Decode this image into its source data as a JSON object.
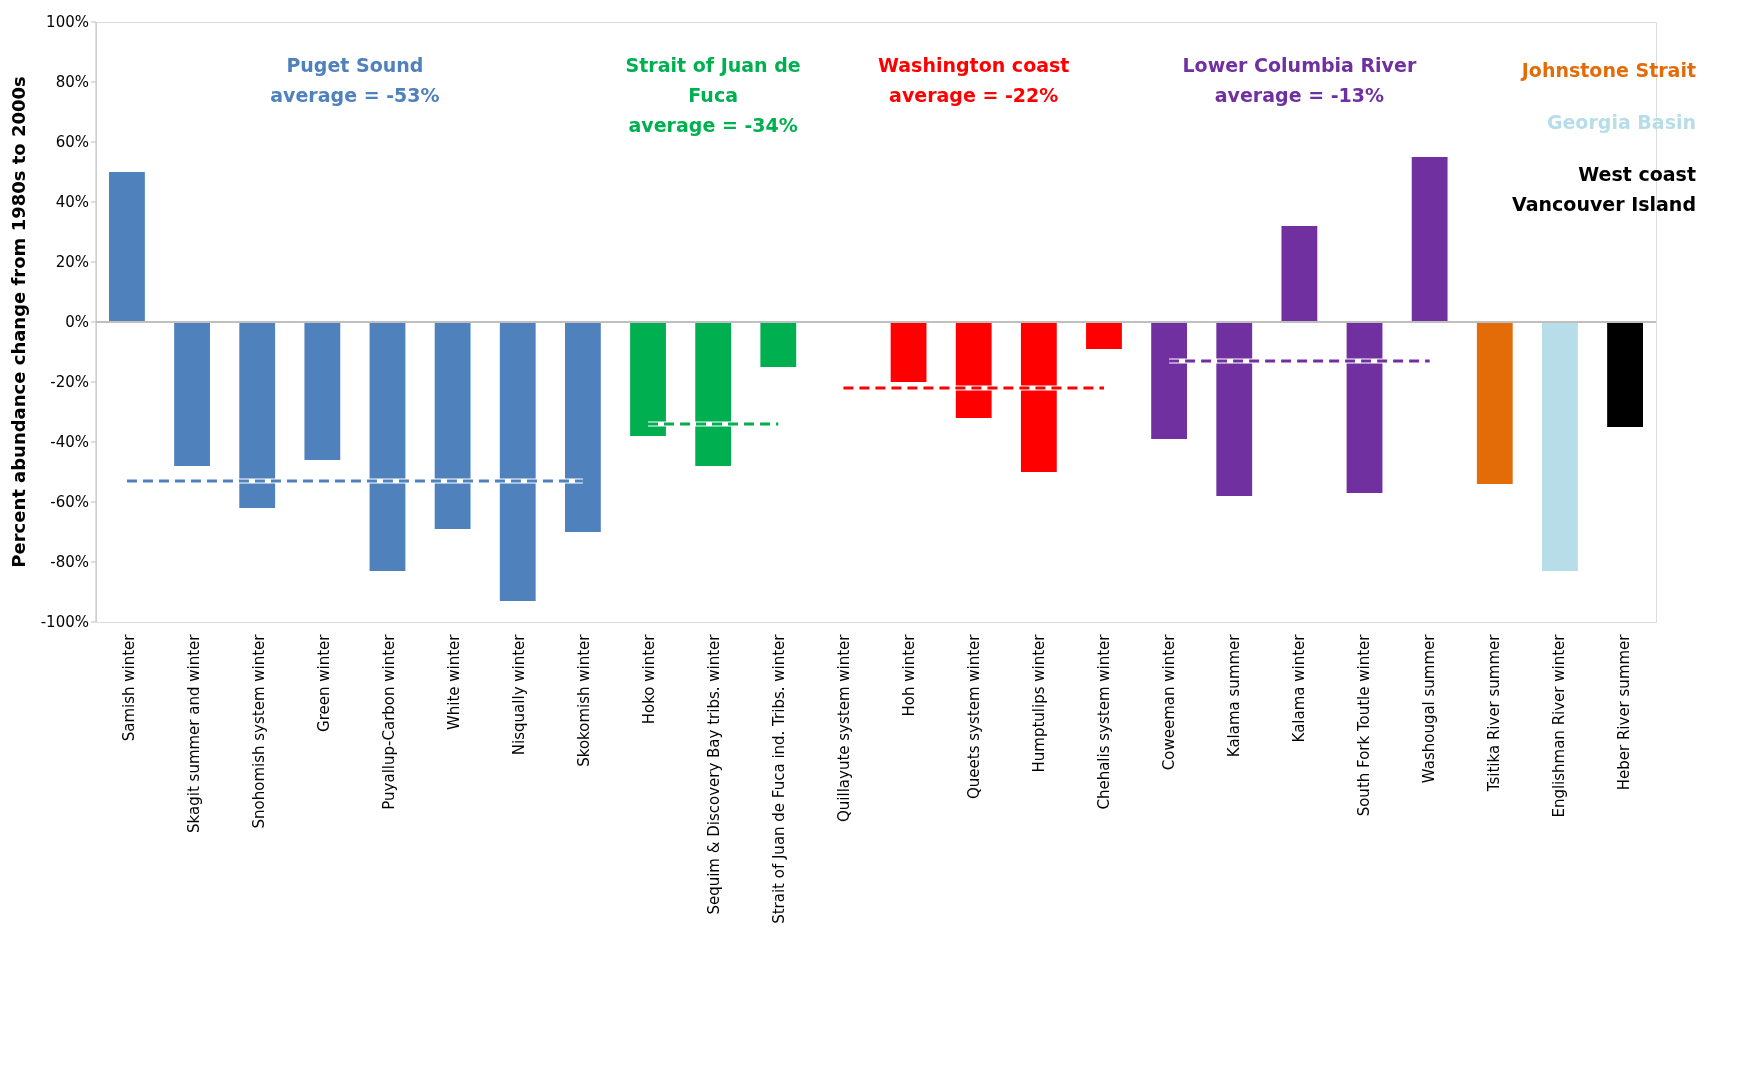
{
  "chart_data": {
    "type": "bar",
    "ylabel": "Percent abundance change from 1980s to 2000s",
    "categories": [
      "Samish winter",
      "Skagit summer and winter",
      "Snohomish system winter",
      "Green winter",
      "Puyallup-Carbon winter",
      "White winter",
      "Nisqually winter",
      "Skokomish winter",
      "Hoko winter",
      "Sequim & Discovery Bay tribs. winter",
      "Strait of Juan de Fuca ind. Tribs. winter",
      "Quillayute system winter",
      "Hoh winter",
      "Queets system winter",
      "Humptulips winter",
      "Chehalis system winter",
      "Coweeman winter",
      "Kalama summer",
      "Kalama winter",
      "South Fork Toutle winter",
      "Washougal summer",
      "Tsitika River summer",
      "Englishman River winter",
      "Heber River summer"
    ],
    "series": [
      {
        "name": "Puget Sound",
        "color": "#4f81bd",
        "values": [
          50,
          -48,
          -62,
          -46,
          -83,
          -69,
          -93,
          -70,
          null,
          null,
          null,
          null,
          null,
          null,
          null,
          null,
          null,
          null,
          null,
          null,
          null,
          null,
          null,
          null
        ]
      },
      {
        "name": "Strait of Juan de Fuca",
        "color": "#00b050",
        "values": [
          null,
          null,
          null,
          null,
          null,
          null,
          null,
          null,
          -38,
          -48,
          -15,
          null,
          null,
          null,
          null,
          null,
          null,
          null,
          null,
          null,
          null,
          null,
          null,
          null
        ]
      },
      {
        "name": "Washington coast",
        "color": "#ff0000",
        "values": [
          null,
          null,
          null,
          null,
          null,
          null,
          null,
          null,
          null,
          null,
          null,
          0,
          -20,
          -32,
          -50,
          -9,
          null,
          null,
          null,
          null,
          null,
          null,
          null,
          null
        ]
      },
      {
        "name": "Lower Columbia River",
        "color": "#7030a0",
        "values": [
          null,
          null,
          null,
          null,
          null,
          null,
          null,
          null,
          null,
          null,
          null,
          null,
          null,
          null,
          null,
          null,
          -39,
          -58,
          32,
          -57,
          55,
          null,
          null,
          null
        ]
      },
      {
        "name": "Johnstone Strait",
        "color": "#e36c09",
        "values": [
          null,
          null,
          null,
          null,
          null,
          null,
          null,
          null,
          null,
          null,
          null,
          null,
          null,
          null,
          null,
          null,
          null,
          null,
          null,
          null,
          null,
          -54,
          null,
          null
        ]
      },
      {
        "name": "Georgia Basin",
        "color": "#b7dde8",
        "values": [
          null,
          null,
          null,
          null,
          null,
          null,
          null,
          null,
          null,
          null,
          null,
          null,
          null,
          null,
          null,
          null,
          null,
          null,
          null,
          null,
          null,
          null,
          -83,
          null
        ]
      },
      {
        "name": "West coast Vancouver Island",
        "color": "#000000",
        "values": [
          null,
          null,
          null,
          null,
          null,
          null,
          null,
          null,
          null,
          null,
          null,
          null,
          null,
          null,
          null,
          null,
          null,
          null,
          null,
          null,
          null,
          null,
          null,
          -35
        ]
      },
      {
        "type": "line",
        "line_style": "dashed",
        "color": "#4f81bd",
        "values": [
          -53,
          -53,
          -53,
          -53,
          -53,
          -53,
          -53,
          -53,
          null,
          null,
          null,
          null,
          null,
          null,
          null,
          null,
          null,
          null,
          null,
          null,
          null,
          null,
          null,
          null
        ]
      },
      {
        "type": "line",
        "line_style": "dashed",
        "color": "#00b050",
        "values": [
          null,
          null,
          null,
          null,
          null,
          null,
          null,
          null,
          -34,
          -34,
          -34,
          null,
          null,
          null,
          null,
          null,
          null,
          null,
          null,
          null,
          null,
          null,
          null,
          null
        ]
      },
      {
        "type": "line",
        "line_style": "dashed",
        "color": "#ff0000",
        "values": [
          null,
          null,
          null,
          null,
          null,
          null,
          null,
          null,
          null,
          null,
          null,
          -22,
          -22,
          -22,
          -22,
          -22,
          null,
          null,
          null,
          null,
          null,
          null,
          null,
          null
        ]
      },
      {
        "type": "line",
        "line_style": "dashed",
        "color": "#7030a0",
        "values": [
          null,
          null,
          null,
          null,
          null,
          null,
          null,
          null,
          null,
          null,
          null,
          null,
          null,
          null,
          null,
          null,
          -13,
          -13,
          -13,
          -13,
          -13,
          null,
          null,
          null
        ]
      }
    ],
    "annotations": [
      "average = -53%",
      "average = -34%",
      "average = -22%",
      "average = -13%"
    ],
    "ref_lines": [
      {
        "axis": "y",
        "value": 0,
        "color": "#bfbfbf"
      }
    ],
    "ylim": [
      -100,
      100
    ],
    "yticks": [
      {
        "value": 100,
        "label": "100%"
      },
      {
        "value": 80,
        "label": "80%"
      },
      {
        "value": 60,
        "label": "60%"
      },
      {
        "value": 40,
        "label": "40%"
      },
      {
        "value": 20,
        "label": "20%"
      },
      {
        "value": 0,
        "label": "0%"
      },
      {
        "value": -20,
        "label": "-20%"
      },
      {
        "value": -40,
        "label": "-40%"
      },
      {
        "value": -60,
        "label": "-60%"
      },
      {
        "value": -80,
        "label": "-80%"
      },
      {
        "value": -100,
        "label": "-100%"
      }
    ],
    "grid": false
  }
}
